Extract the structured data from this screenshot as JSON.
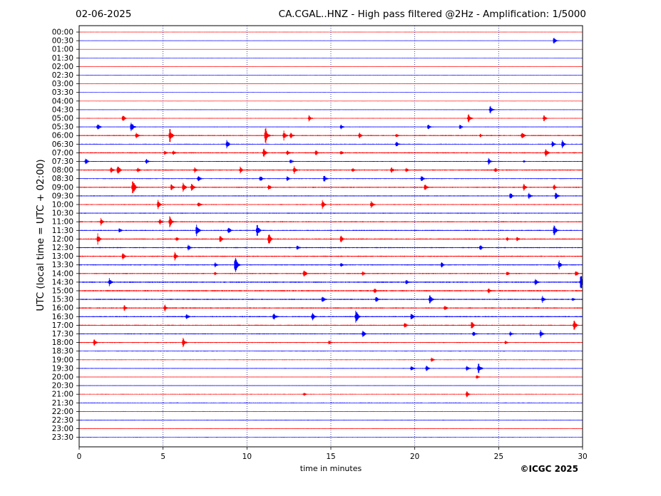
{
  "header": {
    "date": "02-06-2025",
    "title": "CA.CGAL..HNZ - High pass filtered @2Hz - Amplification: 1/5000"
  },
  "footer": {
    "copyright": "©ICGC 2025"
  },
  "chart_data": {
    "type": "line",
    "title": "CA.CGAL..HNZ - High pass filtered @2Hz - Amplification: 1/5000",
    "date": "02-06-2025",
    "xlabel": "time in minutes",
    "ylabel": "UTC (local time = UTC + 02:00)",
    "xlim": [
      0,
      30
    ],
    "xticks": [
      0,
      5,
      10,
      15,
      20,
      25,
      30
    ],
    "grid": "vertical dotted lines at 5-minute ticks",
    "trace_colors": [
      "#ff0000",
      "#0000ff"
    ],
    "rows": [
      "00:00",
      "00:30",
      "01:00",
      "01:30",
      "02:00",
      "02:30",
      "03:00",
      "03:30",
      "04:00",
      "04:30",
      "05:00",
      "05:30",
      "06:00",
      "06:30",
      "07:00",
      "07:30",
      "08:00",
      "08:30",
      "09:00",
      "09:30",
      "10:00",
      "10:30",
      "11:00",
      "11:30",
      "12:00",
      "12:30",
      "13:00",
      "13:30",
      "14:00",
      "14:30",
      "15:00",
      "15:30",
      "16:00",
      "16:30",
      "17:00",
      "17:30",
      "18:00",
      "18:30",
      "19:00",
      "19:30",
      "20:00",
      "20:30",
      "21:00",
      "21:30",
      "22:00",
      "22:30",
      "23:00",
      "23:30"
    ],
    "noise_level": [
      0.3,
      0.3,
      0.3,
      0.4,
      0.3,
      0.3,
      0.3,
      0.4,
      0.4,
      0.4,
      0.6,
      0.6,
      1.0,
      0.7,
      1.0,
      0.7,
      1.0,
      0.7,
      1.0,
      0.8,
      0.8,
      0.8,
      1.0,
      0.9,
      1.0,
      0.9,
      1.0,
      0.9,
      1.0,
      1.1,
      1.2,
      1.0,
      1.1,
      1.0,
      0.9,
      0.8,
      0.8,
      0.6,
      0.6,
      0.6,
      0.5,
      0.5,
      0.6,
      0.6,
      0.6,
      0.6,
      0.5,
      0.5
    ],
    "events": [
      {
        "row": "00:30",
        "t": 28.3,
        "amp": 6
      },
      {
        "row": "04:30",
        "t": 24.5,
        "amp": 6
      },
      {
        "row": "05:00",
        "t": 2.6,
        "amp": 6
      },
      {
        "row": "05:00",
        "t": 13.7,
        "amp": 5
      },
      {
        "row": "05:00",
        "t": 23.2,
        "amp": 7
      },
      {
        "row": "05:00",
        "t": 27.7,
        "amp": 5
      },
      {
        "row": "05:30",
        "t": 1.1,
        "amp": 6
      },
      {
        "row": "05:30",
        "t": 3.1,
        "amp": 9
      },
      {
        "row": "05:30",
        "t": 15.6,
        "amp": 4
      },
      {
        "row": "05:30",
        "t": 20.8,
        "amp": 4
      },
      {
        "row": "05:30",
        "t": 22.7,
        "amp": 4
      },
      {
        "row": "06:00",
        "t": 3.4,
        "amp": 6
      },
      {
        "row": "06:00",
        "t": 5.4,
        "amp": 12
      },
      {
        "row": "06:00",
        "t": 11.1,
        "amp": 14
      },
      {
        "row": "06:00",
        "t": 12.2,
        "amp": 7
      },
      {
        "row": "06:00",
        "t": 12.6,
        "amp": 6
      },
      {
        "row": "06:00",
        "t": 16.7,
        "amp": 5
      },
      {
        "row": "06:00",
        "t": 18.9,
        "amp": 4
      },
      {
        "row": "06:00",
        "t": 23.9,
        "amp": 3
      },
      {
        "row": "06:00",
        "t": 26.4,
        "amp": 6
      },
      {
        "row": "06:30",
        "t": 8.8,
        "amp": 7
      },
      {
        "row": "06:30",
        "t": 18.9,
        "amp": 5
      },
      {
        "row": "06:30",
        "t": 28.2,
        "amp": 5
      },
      {
        "row": "06:30",
        "t": 28.8,
        "amp": 6
      },
      {
        "row": "07:00",
        "t": 5.1,
        "amp": 4
      },
      {
        "row": "07:00",
        "t": 5.6,
        "amp": 4
      },
      {
        "row": "07:00",
        "t": 11.0,
        "amp": 8
      },
      {
        "row": "07:00",
        "t": 12.4,
        "amp": 5
      },
      {
        "row": "07:00",
        "t": 14.1,
        "amp": 5
      },
      {
        "row": "07:00",
        "t": 15.6,
        "amp": 4
      },
      {
        "row": "07:00",
        "t": 27.8,
        "amp": 7
      },
      {
        "row": "07:30",
        "t": 0.4,
        "amp": 5
      },
      {
        "row": "07:30",
        "t": 4.0,
        "amp": 4
      },
      {
        "row": "07:30",
        "t": 12.6,
        "amp": 4
      },
      {
        "row": "07:30",
        "t": 24.4,
        "amp": 6
      },
      {
        "row": "07:30",
        "t": 26.5,
        "amp": 2
      },
      {
        "row": "08:00",
        "t": 1.9,
        "amp": 5
      },
      {
        "row": "08:00",
        "t": 2.3,
        "amp": 9
      },
      {
        "row": "08:00",
        "t": 3.5,
        "amp": 4
      },
      {
        "row": "08:00",
        "t": 6.9,
        "amp": 5
      },
      {
        "row": "08:00",
        "t": 9.6,
        "amp": 5
      },
      {
        "row": "08:00",
        "t": 12.8,
        "amp": 6
      },
      {
        "row": "08:00",
        "t": 16.3,
        "amp": 4
      },
      {
        "row": "08:00",
        "t": 18.6,
        "amp": 5
      },
      {
        "row": "08:00",
        "t": 19.5,
        "amp": 4
      },
      {
        "row": "08:00",
        "t": 24.8,
        "amp": 4
      },
      {
        "row": "08:30",
        "t": 7.1,
        "amp": 6
      },
      {
        "row": "08:30",
        "t": 10.8,
        "amp": 5
      },
      {
        "row": "08:30",
        "t": 12.4,
        "amp": 4
      },
      {
        "row": "08:30",
        "t": 14.6,
        "amp": 6
      },
      {
        "row": "08:30",
        "t": 20.4,
        "amp": 5
      },
      {
        "row": "09:00",
        "t": 3.2,
        "amp": 14
      },
      {
        "row": "09:00",
        "t": 5.5,
        "amp": 6
      },
      {
        "row": "09:00",
        "t": 6.2,
        "amp": 7
      },
      {
        "row": "09:00",
        "t": 6.7,
        "amp": 7
      },
      {
        "row": "09:00",
        "t": 11.3,
        "amp": 5
      },
      {
        "row": "09:00",
        "t": 20.6,
        "amp": 6
      },
      {
        "row": "09:00",
        "t": 26.5,
        "amp": 5
      },
      {
        "row": "09:00",
        "t": 28.3,
        "amp": 5
      },
      {
        "row": "09:30",
        "t": 25.7,
        "amp": 6
      },
      {
        "row": "09:30",
        "t": 26.8,
        "amp": 5
      },
      {
        "row": "09:30",
        "t": 28.4,
        "amp": 6
      },
      {
        "row": "10:00",
        "t": 4.7,
        "amp": 7
      },
      {
        "row": "10:00",
        "t": 7.1,
        "amp": 5
      },
      {
        "row": "10:00",
        "t": 14.5,
        "amp": 7
      },
      {
        "row": "10:00",
        "t": 17.4,
        "amp": 6
      },
      {
        "row": "11:00",
        "t": 1.3,
        "amp": 6
      },
      {
        "row": "11:00",
        "t": 4.8,
        "amp": 5
      },
      {
        "row": "11:00",
        "t": 5.4,
        "amp": 9
      },
      {
        "row": "11:30",
        "t": 2.4,
        "amp": 4
      },
      {
        "row": "11:30",
        "t": 7.0,
        "amp": 10
      },
      {
        "row": "11:30",
        "t": 8.9,
        "amp": 6
      },
      {
        "row": "11:30",
        "t": 10.6,
        "amp": 11
      },
      {
        "row": "11:30",
        "t": 28.3,
        "amp": 10
      },
      {
        "row": "12:00",
        "t": 1.1,
        "amp": 9
      },
      {
        "row": "12:00",
        "t": 5.8,
        "amp": 4
      },
      {
        "row": "12:00",
        "t": 8.4,
        "amp": 6
      },
      {
        "row": "12:00",
        "t": 11.3,
        "amp": 10
      },
      {
        "row": "12:00",
        "t": 15.6,
        "amp": 6
      },
      {
        "row": "12:00",
        "t": 25.5,
        "amp": 3
      },
      {
        "row": "12:00",
        "t": 26.1,
        "amp": 4
      },
      {
        "row": "12:30",
        "t": 6.5,
        "amp": 6
      },
      {
        "row": "12:30",
        "t": 13.0,
        "amp": 5
      },
      {
        "row": "12:30",
        "t": 23.9,
        "amp": 5
      },
      {
        "row": "13:00",
        "t": 2.6,
        "amp": 6
      },
      {
        "row": "13:00",
        "t": 5.7,
        "amp": 7
      },
      {
        "row": "13:30",
        "t": 8.1,
        "amp": 4
      },
      {
        "row": "13:30",
        "t": 9.3,
        "amp": 14
      },
      {
        "row": "13:30",
        "t": 15.6,
        "amp": 4
      },
      {
        "row": "13:30",
        "t": 21.6,
        "amp": 5
      },
      {
        "row": "13:30",
        "t": 28.6,
        "amp": 7
      },
      {
        "row": "14:00",
        "t": 8.1,
        "amp": 3
      },
      {
        "row": "14:00",
        "t": 13.4,
        "amp": 7
      },
      {
        "row": "14:00",
        "t": 16.9,
        "amp": 4
      },
      {
        "row": "14:00",
        "t": 25.5,
        "amp": 4
      },
      {
        "row": "14:00",
        "t": 29.6,
        "amp": 5
      },
      {
        "row": "14:30",
        "t": 1.8,
        "amp": 6
      },
      {
        "row": "14:30",
        "t": 19.5,
        "amp": 4
      },
      {
        "row": "14:30",
        "t": 27.2,
        "amp": 6
      },
      {
        "row": "14:30",
        "t": 29.9,
        "amp": 13
      },
      {
        "row": "15:00",
        "t": 17.6,
        "amp": 5
      },
      {
        "row": "15:00",
        "t": 24.4,
        "amp": 5
      },
      {
        "row": "15:30",
        "t": 14.5,
        "amp": 6
      },
      {
        "row": "15:30",
        "t": 17.7,
        "amp": 5
      },
      {
        "row": "15:30",
        "t": 20.9,
        "amp": 9
      },
      {
        "row": "15:30",
        "t": 27.6,
        "amp": 6
      },
      {
        "row": "15:30",
        "t": 29.4,
        "amp": 3
      },
      {
        "row": "16:00",
        "t": 2.7,
        "amp": 5
      },
      {
        "row": "16:00",
        "t": 5.1,
        "amp": 6
      },
      {
        "row": "16:00",
        "t": 21.8,
        "amp": 5
      },
      {
        "row": "16:30",
        "t": 6.4,
        "amp": 5
      },
      {
        "row": "16:30",
        "t": 11.6,
        "amp": 7
      },
      {
        "row": "16:30",
        "t": 13.9,
        "amp": 7
      },
      {
        "row": "16:30",
        "t": 16.5,
        "amp": 11
      },
      {
        "row": "16:30",
        "t": 19.8,
        "amp": 6
      },
      {
        "row": "17:00",
        "t": 19.4,
        "amp": 5
      },
      {
        "row": "17:00",
        "t": 23.4,
        "amp": 7
      },
      {
        "row": "17:00",
        "t": 29.5,
        "amp": 8
      },
      {
        "row": "17:30",
        "t": 16.9,
        "amp": 6
      },
      {
        "row": "17:30",
        "t": 23.5,
        "amp": 5
      },
      {
        "row": "17:30",
        "t": 25.7,
        "amp": 4
      },
      {
        "row": "17:30",
        "t": 27.5,
        "amp": 6
      },
      {
        "row": "18:00",
        "t": 0.9,
        "amp": 6
      },
      {
        "row": "18:00",
        "t": 6.2,
        "amp": 7
      },
      {
        "row": "18:00",
        "t": 14.9,
        "amp": 4
      },
      {
        "row": "18:00",
        "t": 25.4,
        "amp": 3
      },
      {
        "row": "19:00",
        "t": 21.0,
        "amp": 4
      },
      {
        "row": "19:30",
        "t": 19.8,
        "amp": 5
      },
      {
        "row": "19:30",
        "t": 20.7,
        "amp": 5
      },
      {
        "row": "19:30",
        "t": 23.1,
        "amp": 5
      },
      {
        "row": "19:30",
        "t": 23.8,
        "amp": 9
      },
      {
        "row": "20:00",
        "t": 23.7,
        "amp": 4
      },
      {
        "row": "21:00",
        "t": 13.4,
        "amp": 3
      },
      {
        "row": "21:00",
        "t": 23.1,
        "amp": 5
      }
    ]
  }
}
